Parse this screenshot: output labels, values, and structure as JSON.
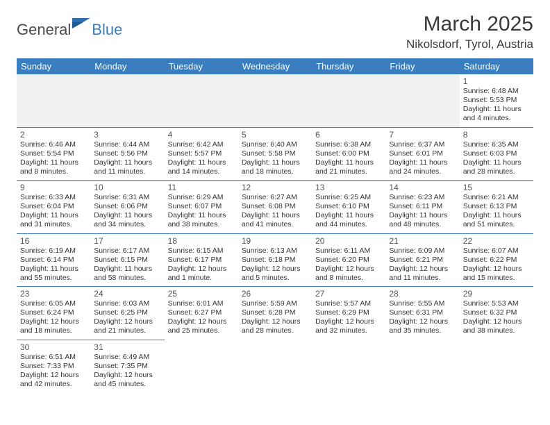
{
  "logo": {
    "text1": "General",
    "text2": "Blue"
  },
  "title": "March 2025",
  "location": "Nikolsdorf, Tyrol, Austria",
  "colors": {
    "header_bg": "#3a7ebf",
    "header_text": "#ffffff",
    "border": "#3a7ebf",
    "empty_bg": "#f1f1f1",
    "text": "#333333"
  },
  "typography": {
    "title_fontsize": 30,
    "location_fontsize": 17,
    "dayheader_fontsize": 13,
    "daynum_fontsize": 12,
    "info_fontsize": 10.5
  },
  "columns": [
    "Sunday",
    "Monday",
    "Tuesday",
    "Wednesday",
    "Thursday",
    "Friday",
    "Saturday"
  ],
  "weeks": [
    [
      null,
      null,
      null,
      null,
      null,
      null,
      {
        "d": "1",
        "sr": "Sunrise: 6:48 AM",
        "ss": "Sunset: 5:53 PM",
        "dl": "Daylight: 11 hours and 4 minutes."
      }
    ],
    [
      {
        "d": "2",
        "sr": "Sunrise: 6:46 AM",
        "ss": "Sunset: 5:54 PM",
        "dl": "Daylight: 11 hours and 8 minutes."
      },
      {
        "d": "3",
        "sr": "Sunrise: 6:44 AM",
        "ss": "Sunset: 5:56 PM",
        "dl": "Daylight: 11 hours and 11 minutes."
      },
      {
        "d": "4",
        "sr": "Sunrise: 6:42 AM",
        "ss": "Sunset: 5:57 PM",
        "dl": "Daylight: 11 hours and 14 minutes."
      },
      {
        "d": "5",
        "sr": "Sunrise: 6:40 AM",
        "ss": "Sunset: 5:58 PM",
        "dl": "Daylight: 11 hours and 18 minutes."
      },
      {
        "d": "6",
        "sr": "Sunrise: 6:38 AM",
        "ss": "Sunset: 6:00 PM",
        "dl": "Daylight: 11 hours and 21 minutes."
      },
      {
        "d": "7",
        "sr": "Sunrise: 6:37 AM",
        "ss": "Sunset: 6:01 PM",
        "dl": "Daylight: 11 hours and 24 minutes."
      },
      {
        "d": "8",
        "sr": "Sunrise: 6:35 AM",
        "ss": "Sunset: 6:03 PM",
        "dl": "Daylight: 11 hours and 28 minutes."
      }
    ],
    [
      {
        "d": "9",
        "sr": "Sunrise: 6:33 AM",
        "ss": "Sunset: 6:04 PM",
        "dl": "Daylight: 11 hours and 31 minutes."
      },
      {
        "d": "10",
        "sr": "Sunrise: 6:31 AM",
        "ss": "Sunset: 6:06 PM",
        "dl": "Daylight: 11 hours and 34 minutes."
      },
      {
        "d": "11",
        "sr": "Sunrise: 6:29 AM",
        "ss": "Sunset: 6:07 PM",
        "dl": "Daylight: 11 hours and 38 minutes."
      },
      {
        "d": "12",
        "sr": "Sunrise: 6:27 AM",
        "ss": "Sunset: 6:08 PM",
        "dl": "Daylight: 11 hours and 41 minutes."
      },
      {
        "d": "13",
        "sr": "Sunrise: 6:25 AM",
        "ss": "Sunset: 6:10 PM",
        "dl": "Daylight: 11 hours and 44 minutes."
      },
      {
        "d": "14",
        "sr": "Sunrise: 6:23 AM",
        "ss": "Sunset: 6:11 PM",
        "dl": "Daylight: 11 hours and 48 minutes."
      },
      {
        "d": "15",
        "sr": "Sunrise: 6:21 AM",
        "ss": "Sunset: 6:13 PM",
        "dl": "Daylight: 11 hours and 51 minutes."
      }
    ],
    [
      {
        "d": "16",
        "sr": "Sunrise: 6:19 AM",
        "ss": "Sunset: 6:14 PM",
        "dl": "Daylight: 11 hours and 55 minutes."
      },
      {
        "d": "17",
        "sr": "Sunrise: 6:17 AM",
        "ss": "Sunset: 6:15 PM",
        "dl": "Daylight: 11 hours and 58 minutes."
      },
      {
        "d": "18",
        "sr": "Sunrise: 6:15 AM",
        "ss": "Sunset: 6:17 PM",
        "dl": "Daylight: 12 hours and 1 minute."
      },
      {
        "d": "19",
        "sr": "Sunrise: 6:13 AM",
        "ss": "Sunset: 6:18 PM",
        "dl": "Daylight: 12 hours and 5 minutes."
      },
      {
        "d": "20",
        "sr": "Sunrise: 6:11 AM",
        "ss": "Sunset: 6:20 PM",
        "dl": "Daylight: 12 hours and 8 minutes."
      },
      {
        "d": "21",
        "sr": "Sunrise: 6:09 AM",
        "ss": "Sunset: 6:21 PM",
        "dl": "Daylight: 12 hours and 11 minutes."
      },
      {
        "d": "22",
        "sr": "Sunrise: 6:07 AM",
        "ss": "Sunset: 6:22 PM",
        "dl": "Daylight: 12 hours and 15 minutes."
      }
    ],
    [
      {
        "d": "23",
        "sr": "Sunrise: 6:05 AM",
        "ss": "Sunset: 6:24 PM",
        "dl": "Daylight: 12 hours and 18 minutes."
      },
      {
        "d": "24",
        "sr": "Sunrise: 6:03 AM",
        "ss": "Sunset: 6:25 PM",
        "dl": "Daylight: 12 hours and 21 minutes."
      },
      {
        "d": "25",
        "sr": "Sunrise: 6:01 AM",
        "ss": "Sunset: 6:27 PM",
        "dl": "Daylight: 12 hours and 25 minutes."
      },
      {
        "d": "26",
        "sr": "Sunrise: 5:59 AM",
        "ss": "Sunset: 6:28 PM",
        "dl": "Daylight: 12 hours and 28 minutes."
      },
      {
        "d": "27",
        "sr": "Sunrise: 5:57 AM",
        "ss": "Sunset: 6:29 PM",
        "dl": "Daylight: 12 hours and 32 minutes."
      },
      {
        "d": "28",
        "sr": "Sunrise: 5:55 AM",
        "ss": "Sunset: 6:31 PM",
        "dl": "Daylight: 12 hours and 35 minutes."
      },
      {
        "d": "29",
        "sr": "Sunrise: 5:53 AM",
        "ss": "Sunset: 6:32 PM",
        "dl": "Daylight: 12 hours and 38 minutes."
      }
    ],
    [
      {
        "d": "30",
        "sr": "Sunrise: 6:51 AM",
        "ss": "Sunset: 7:33 PM",
        "dl": "Daylight: 12 hours and 42 minutes."
      },
      {
        "d": "31",
        "sr": "Sunrise: 6:49 AM",
        "ss": "Sunset: 7:35 PM",
        "dl": "Daylight: 12 hours and 45 minutes."
      },
      null,
      null,
      null,
      null,
      null
    ]
  ]
}
